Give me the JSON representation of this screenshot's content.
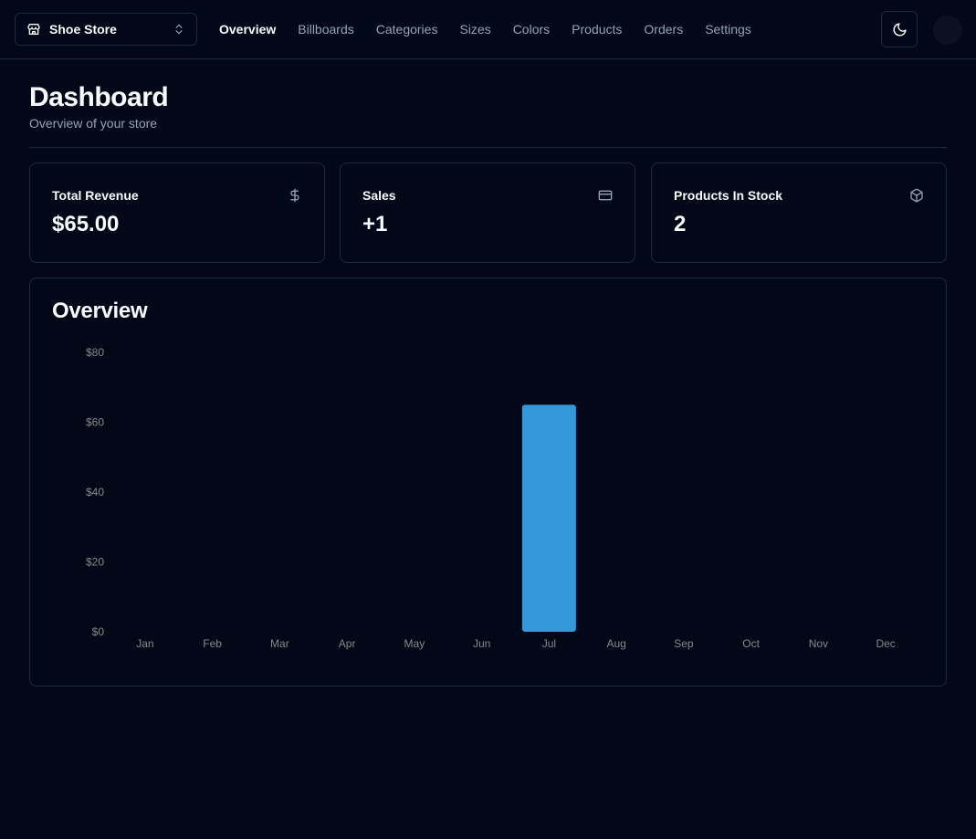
{
  "header": {
    "store_name": "Shoe Store",
    "nav": [
      {
        "label": "Overview",
        "active": true
      },
      {
        "label": "Billboards",
        "active": false
      },
      {
        "label": "Categories",
        "active": false
      },
      {
        "label": "Sizes",
        "active": false
      },
      {
        "label": "Colors",
        "active": false
      },
      {
        "label": "Products",
        "active": false
      },
      {
        "label": "Orders",
        "active": false
      },
      {
        "label": "Settings",
        "active": false
      }
    ]
  },
  "page": {
    "title": "Dashboard",
    "subtitle": "Overview of your store"
  },
  "stats": [
    {
      "label": "Total Revenue",
      "value": "$65.00",
      "icon": "dollar-icon"
    },
    {
      "label": "Sales",
      "value": "+1",
      "icon": "credit-card-icon"
    },
    {
      "label": "Products In Stock",
      "value": "2",
      "icon": "package-icon"
    }
  ],
  "overview": {
    "title": "Overview"
  },
  "colors": {
    "background": "#020817",
    "border": "#1e293b",
    "muted_text": "#94a3b8",
    "bar": "#3498db"
  },
  "chart_data": {
    "type": "bar",
    "categories": [
      "Jan",
      "Feb",
      "Mar",
      "Apr",
      "May",
      "Jun",
      "Jul",
      "Aug",
      "Sep",
      "Oct",
      "Nov",
      "Dec"
    ],
    "values": [
      0,
      0,
      0,
      0,
      0,
      0,
      65,
      0,
      0,
      0,
      0,
      0
    ],
    "yticks": [
      "$0",
      "$20",
      "$40",
      "$60",
      "$80"
    ],
    "ylim": [
      0,
      80
    ],
    "grid": false,
    "title": "Overview"
  }
}
